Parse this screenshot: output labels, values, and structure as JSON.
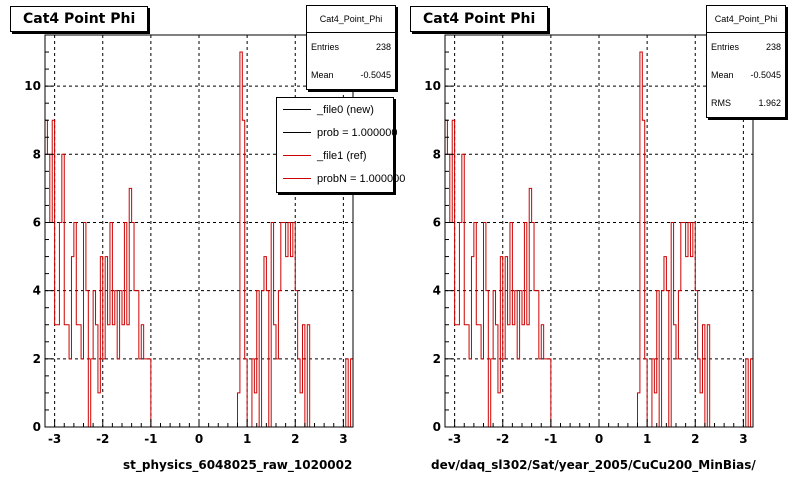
{
  "chart_data": [
    {
      "type": "histogram",
      "title": "Cat4 Point Phi",
      "xlabel": "st_physics_6048025_raw_1020002",
      "ylabel": "",
      "xlim": [
        -3.2,
        3.2
      ],
      "ylim": [
        0,
        11.5
      ],
      "x_ticks": [
        -3,
        -2,
        -1,
        0,
        1,
        2,
        3
      ],
      "y_ticks": [
        0,
        2,
        4,
        6,
        8,
        10
      ],
      "grid": true,
      "bins": 128,
      "stats": {
        "name": "Cat4_Point_Phi",
        "entries_label": "Entries",
        "entries": "238",
        "mean_label": "Mean",
        "mean": "-0.5045"
      },
      "legend": {
        "placement": "top-right",
        "entries": [
          {
            "label": "_file0 (new)",
            "color": "#000000"
          },
          {
            "label": "prob = 1.000000",
            "color": "#000000"
          },
          {
            "label": "_file1 (ref)",
            "color": "#cc0000"
          },
          {
            "label": "probN = 1.000000",
            "color": "#cc0000"
          }
        ]
      },
      "series": [
        {
          "name": "_file1 (ref)",
          "color": "#cc0000",
          "values": [
            9,
            8,
            6,
            9,
            3,
            3,
            6,
            8,
            3,
            3,
            2,
            5,
            6,
            3,
            3,
            2,
            6,
            4,
            0,
            2,
            4,
            3,
            1,
            5,
            2,
            5,
            3,
            6,
            3,
            4,
            2,
            4,
            3,
            6,
            3,
            7,
            6,
            4,
            4,
            2,
            3,
            2,
            2,
            2,
            0,
            0,
            0,
            0,
            0,
            0,
            0,
            0,
            0,
            0,
            0,
            0,
            0,
            0,
            0,
            0,
            0,
            0,
            0,
            0,
            0,
            0,
            0,
            0,
            0,
            0,
            0,
            0,
            0,
            0,
            0,
            0,
            0,
            0,
            0,
            0,
            1,
            11,
            9,
            2,
            0,
            0,
            2,
            1,
            4,
            0,
            4,
            5,
            4,
            0,
            6,
            3,
            2,
            4,
            6,
            6,
            5,
            6,
            5,
            6,
            4,
            2,
            1,
            3,
            0,
            3,
            0,
            0,
            0,
            0,
            0,
            0,
            0,
            0,
            0,
            0,
            0,
            0,
            0,
            0,
            0,
            2,
            0,
            2
          ]
        }
      ]
    },
    {
      "type": "histogram",
      "title": "Cat4 Point Phi",
      "xlabel": "dev/daq_sl302/Sat/year_2005/CuCu200_MinBias/",
      "ylabel": "",
      "xlim": [
        -3.2,
        3.2
      ],
      "ylim": [
        0,
        11.5
      ],
      "x_ticks": [
        -3,
        -2,
        -1,
        0,
        1,
        2,
        3
      ],
      "y_ticks": [
        0,
        2,
        4,
        6,
        8,
        10
      ],
      "grid": true,
      "bins": 128,
      "stats": {
        "name": "Cat4_Point_Phi",
        "entries_label": "Entries",
        "entries": "238",
        "mean_label": "Mean",
        "mean": "-0.5045",
        "rms_label": "RMS",
        "rms": "1.962"
      },
      "series": [
        {
          "name": "_file1 (ref)",
          "color": "#cc0000",
          "values": [
            9,
            8,
            6,
            9,
            3,
            3,
            6,
            8,
            3,
            3,
            2,
            5,
            6,
            3,
            3,
            2,
            6,
            4,
            0,
            2,
            4,
            3,
            1,
            5,
            2,
            5,
            3,
            6,
            3,
            4,
            2,
            4,
            3,
            6,
            3,
            7,
            6,
            4,
            4,
            2,
            3,
            2,
            2,
            2,
            0,
            0,
            0,
            0,
            0,
            0,
            0,
            0,
            0,
            0,
            0,
            0,
            0,
            0,
            0,
            0,
            0,
            0,
            0,
            0,
            0,
            0,
            0,
            0,
            0,
            0,
            0,
            0,
            0,
            0,
            0,
            0,
            0,
            0,
            0,
            0,
            1,
            11,
            9,
            2,
            0,
            0,
            2,
            1,
            4,
            0,
            4,
            5,
            4,
            0,
            6,
            3,
            2,
            4,
            6,
            6,
            5,
            6,
            5,
            6,
            4,
            2,
            1,
            3,
            0,
            3,
            0,
            0,
            0,
            0,
            0,
            0,
            0,
            0,
            0,
            0,
            0,
            0,
            0,
            0,
            0,
            2,
            0,
            2
          ]
        }
      ]
    }
  ],
  "colors": {
    "hist": "#cc0000",
    "frame": "#000000",
    "grid": "#000000"
  }
}
